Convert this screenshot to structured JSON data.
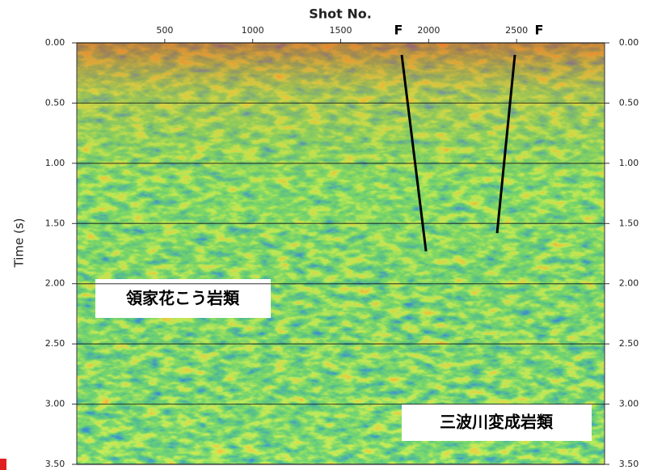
{
  "chart_data": {
    "type": "seismic",
    "x_label": "Shot No.",
    "y_label": "Time (s)",
    "xlim": [
      0,
      3000
    ],
    "xticks": [
      500,
      1000,
      1500,
      2000,
      2500
    ],
    "ylim": [
      0,
      3.5
    ],
    "yticks": [
      {
        "value": 0,
        "label": "0.00"
      },
      {
        "value": 0.5,
        "label": "0.50"
      },
      {
        "value": 1,
        "label": "1.00"
      },
      {
        "value": 1.5,
        "label": "1.50"
      },
      {
        "value": 2,
        "label": "2.00"
      },
      {
        "value": 2.5,
        "label": "2.50"
      },
      {
        "value": 3,
        "label": "3.00"
      },
      {
        "value": 3.5,
        "label": "3.50"
      }
    ],
    "grid": true,
    "faults": [
      {
        "label": "F",
        "x": [
          1847,
          1985
        ],
        "y": [
          0.1,
          1.73
        ]
      },
      {
        "label": "F",
        "x": [
          2490,
          2389
        ],
        "y": [
          0.1,
          1.58
        ]
      }
    ],
    "annotations": [
      "領家花こう岩類",
      "三波川変成岩類"
    ]
  }
}
